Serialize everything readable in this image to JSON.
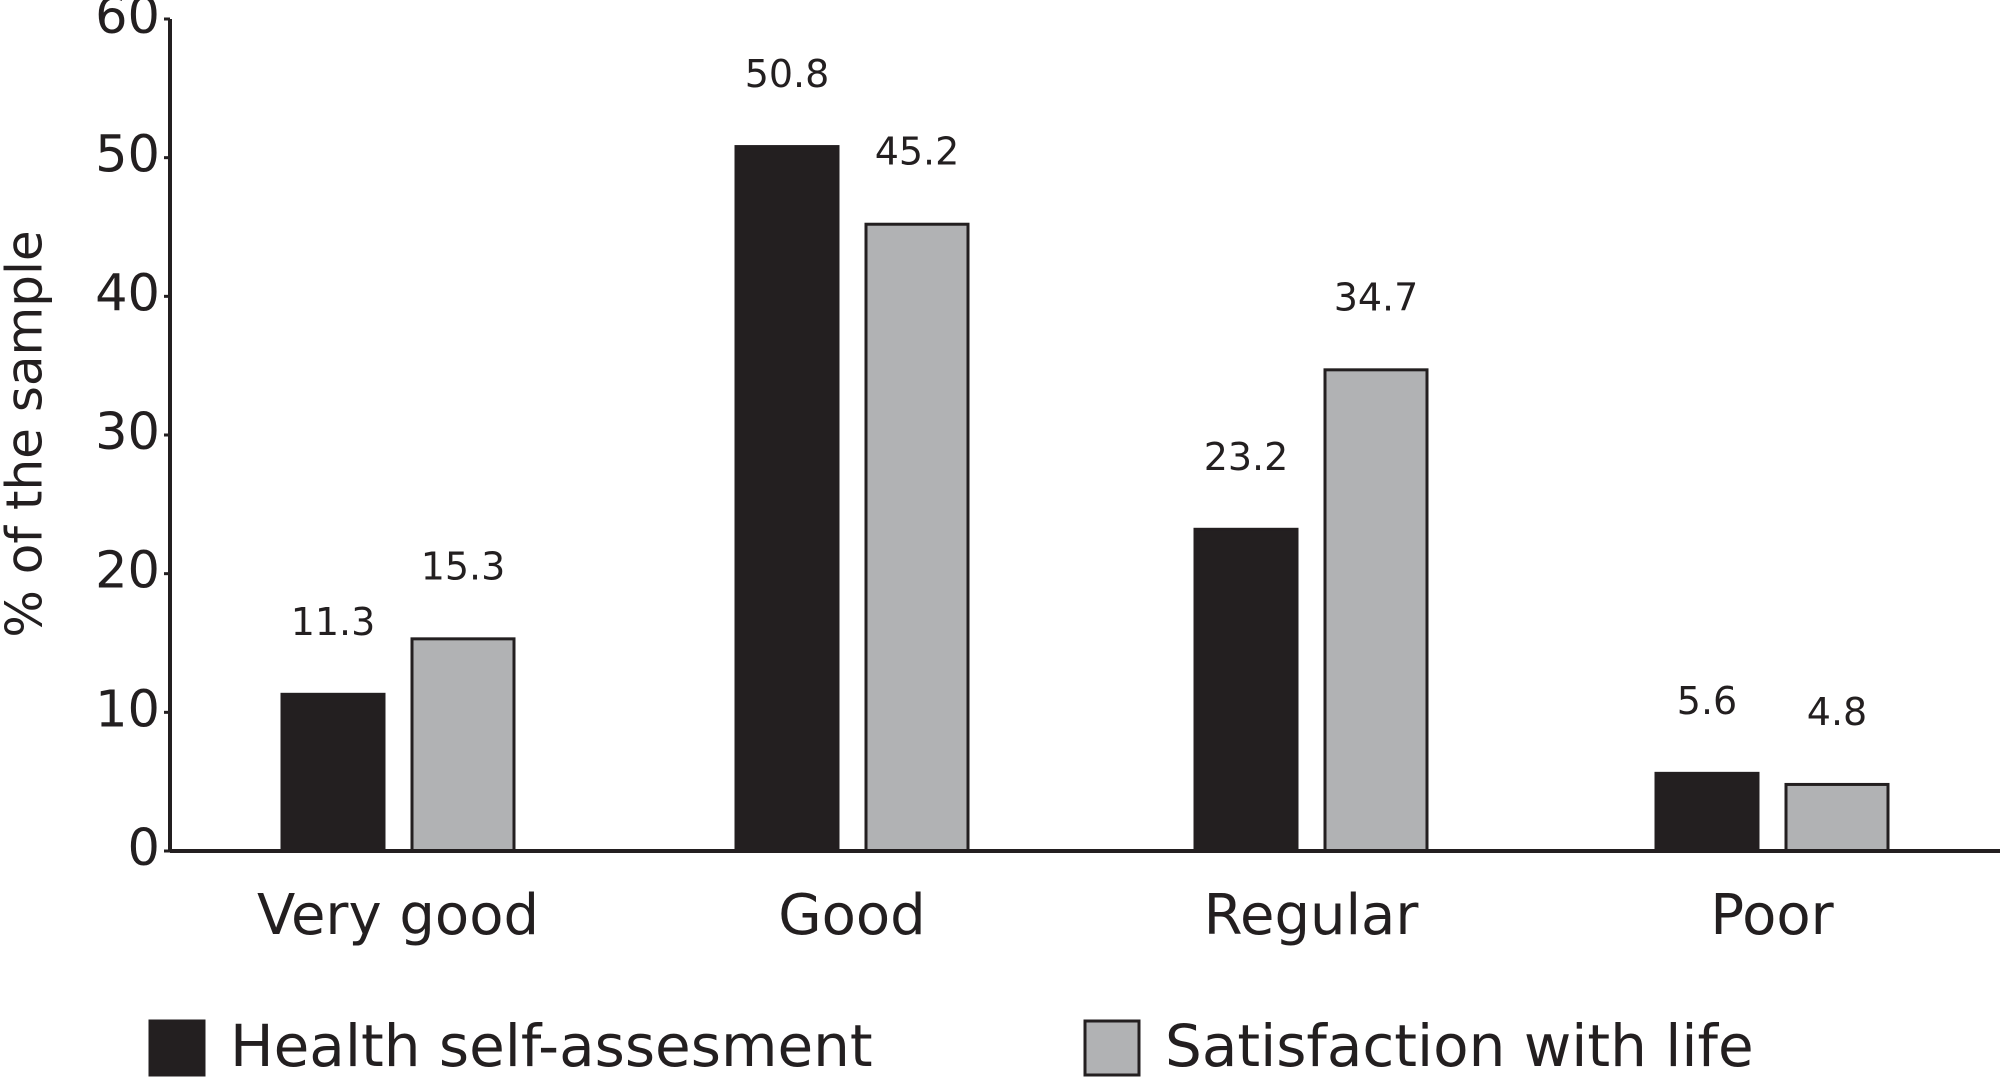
{
  "chart_data": {
    "type": "bar",
    "y_label": "% of the sample",
    "categories": [
      "Very good",
      "Good",
      "Regular",
      "Poor"
    ],
    "series": [
      {
        "name": "Health self-assesment",
        "color": "#231f20",
        "values": [
          11.3,
          50.8,
          23.2,
          5.6
        ]
      },
      {
        "name": "Satisfaction with life",
        "color": "#b1b2b4",
        "values": [
          15.3,
          45.2,
          34.7,
          4.8
        ]
      }
    ],
    "ylim": [
      0,
      60
    ],
    "yticks": [
      0,
      10,
      20,
      30,
      40,
      50,
      60
    ]
  }
}
